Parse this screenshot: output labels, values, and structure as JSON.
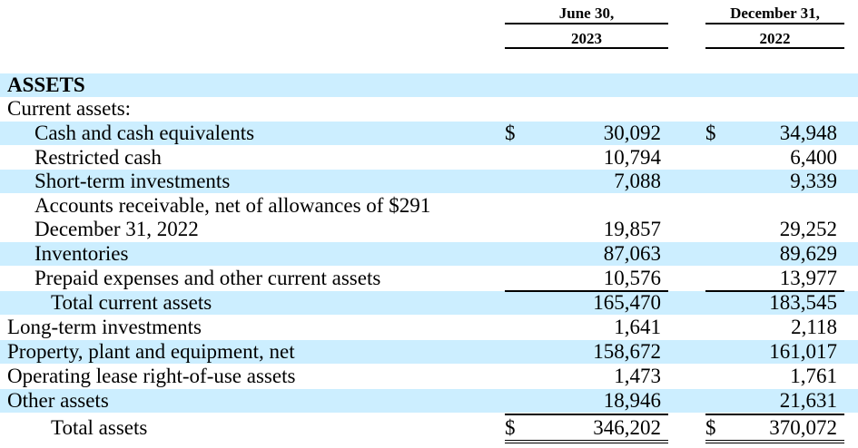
{
  "columns": [
    {
      "line1": "June 30,",
      "line2": "2023"
    },
    {
      "line1": "December 31,",
      "line2": "2022"
    }
  ],
  "rows": [
    {
      "label": "ASSETS",
      "style": "bold",
      "indent": 0,
      "shade": true,
      "cur1": "",
      "v1": "",
      "cur2": "",
      "v2": ""
    },
    {
      "label": "Current assets:",
      "style": "",
      "indent": 0,
      "shade": false,
      "cur1": "",
      "v1": "",
      "cur2": "",
      "v2": ""
    },
    {
      "label": "Cash and cash equivalents",
      "style": "",
      "indent": 1,
      "shade": true,
      "cur1": "$",
      "v1": "30,092",
      "cur2": "$",
      "v2": "34,948"
    },
    {
      "label": "Restricted cash",
      "style": "",
      "indent": 1,
      "shade": false,
      "cur1": "",
      "v1": "10,794",
      "cur2": "",
      "v2": "6,400"
    },
    {
      "label": "Short-term investments",
      "style": "",
      "indent": 1,
      "shade": true,
      "cur1": "",
      "v1": "7,088",
      "cur2": "",
      "v2": "9,339"
    },
    {
      "label": "Accounts receivable, net of allowances of $291",
      "style": "",
      "indent": 1,
      "shade": false,
      "cur1": "",
      "v1": "",
      "cur2": "",
      "v2": ""
    },
    {
      "label": "December 31, 2022",
      "style": "",
      "indent": 1,
      "shade": false,
      "cur1": "",
      "v1": "19,857",
      "cur2": "",
      "v2": "29,252"
    },
    {
      "label": "Inventories",
      "style": "",
      "indent": 1,
      "shade": true,
      "cur1": "",
      "v1": "87,063",
      "cur2": "",
      "v2": "89,629"
    },
    {
      "label": "Prepaid expenses and other current assets",
      "style": "",
      "indent": 1,
      "shade": false,
      "cur1": "",
      "v1": "10,576",
      "cur2": "",
      "v2": "13,977"
    },
    {
      "label": "Total current assets",
      "style": "",
      "indent": 2,
      "shade": true,
      "cur1": "",
      "v1": "165,470",
      "cur2": "",
      "v2": "183,545"
    },
    {
      "label": "Long-term investments",
      "style": "",
      "indent": 0,
      "shade": false,
      "cur1": "",
      "v1": "1,641",
      "cur2": "",
      "v2": "2,118"
    },
    {
      "label": "Property, plant and equipment, net",
      "style": "",
      "indent": 0,
      "shade": true,
      "cur1": "",
      "v1": "158,672",
      "cur2": "",
      "v2": "161,017"
    },
    {
      "label": "Operating lease right-of-use assets",
      "style": "",
      "indent": 0,
      "shade": false,
      "cur1": "",
      "v1": "1,473",
      "cur2": "",
      "v2": "1,761"
    },
    {
      "label": "Other assets",
      "style": "",
      "indent": 0,
      "shade": true,
      "cur1": "",
      "v1": "18,946",
      "cur2": "",
      "v2": "21,631"
    },
    {
      "label": "Total assets",
      "style": "",
      "indent": 2,
      "shade": false,
      "cur1": "$",
      "v1": "346,202",
      "cur2": "$",
      "v2": "370,072"
    }
  ]
}
